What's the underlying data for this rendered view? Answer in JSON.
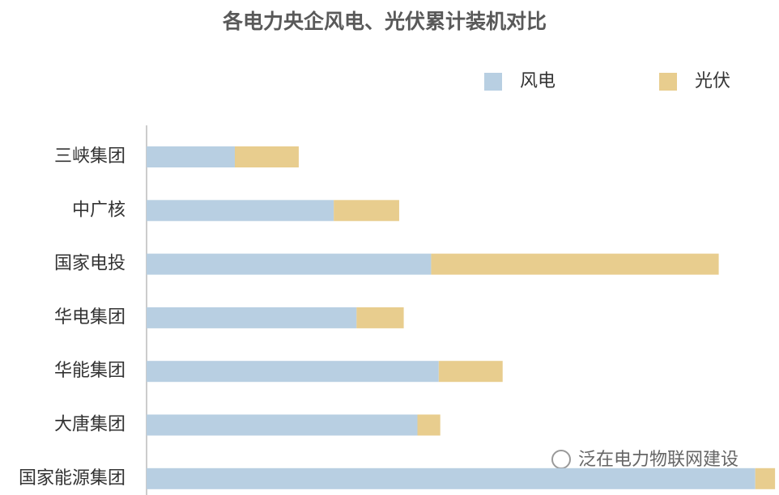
{
  "chart_data": {
    "type": "stacked-barh",
    "title": "各电力央企风电、光伏累计装机对比",
    "categories": [
      "三峡集团",
      "中广核",
      "国家电投",
      "华电集团",
      "华能集团",
      "大唐集团",
      "国家能源集团"
    ],
    "series": [
      {
        "name": "风电",
        "color": "#b8cfe2",
        "values": [
          580,
          1230,
          1870,
          1380,
          1920,
          1780,
          4000
        ]
      },
      {
        "name": "光伏",
        "color": "#e8cd8e",
        "values": [
          420,
          430,
          1890,
          310,
          420,
          150,
          130
        ]
      }
    ],
    "xlim": [
      0,
      4140
    ],
    "legend": "top-right",
    "watermark": "泛在电力物联网建设"
  }
}
